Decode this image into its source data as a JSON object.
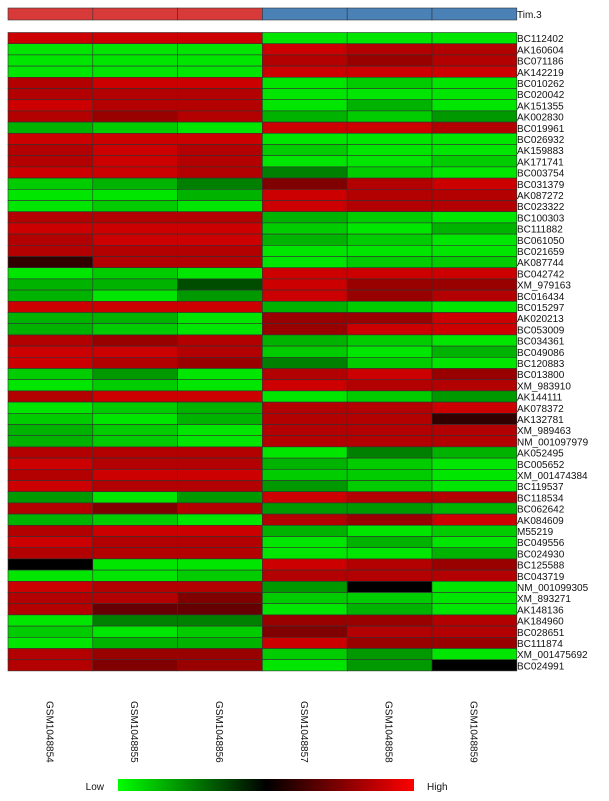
{
  "chart_data": {
    "type": "heatmap",
    "group_bar": {
      "label": "Tim.3",
      "groups": [
        {
          "color": "#d83a3a",
          "samples": 3
        },
        {
          "color": "#4a82b8",
          "samples": 3
        }
      ]
    },
    "samples": [
      "GSM1048854",
      "GSM1048855",
      "GSM1048856",
      "GSM1048857",
      "GSM1048858",
      "GSM1048859"
    ],
    "genes": [
      "BC112402",
      "AK160604",
      "BC071186",
      "AK142219",
      "BC010262",
      "BC020042",
      "AK151355",
      "AK002830",
      "BC019961",
      "BC026932",
      "AK159883",
      "AK171741",
      "BC003754",
      "BC031379",
      "AK087272",
      "BC023322",
      "BC100303",
      "BC111882",
      "BC061050",
      "BC021659",
      "AK087744",
      "BC042742",
      "XM_979163",
      "BC016434",
      "BC015297",
      "AK020213",
      "BC053009",
      "BC034361",
      "BC049086",
      "BC120883",
      "BC013800",
      "XM_983910",
      "AK144111",
      "AK078372",
      "AK132781",
      "XM_989463",
      "NM_001097979",
      "AK052495",
      "BC005652",
      "XM_001474384",
      "BC119537",
      "BC118534",
      "BC062642",
      "AK084609",
      "M55219",
      "BC049556",
      "BC024930",
      "BC125588",
      "BC043719",
      "NM_001099305",
      "XM_893271",
      "AK148136",
      "AK184960",
      "BC028651",
      "BC111874",
      "XM_001475692",
      "BC024991"
    ],
    "values": [
      [
        0.9,
        0.9,
        0.9,
        0.05,
        0.05,
        0.05
      ],
      [
        0.05,
        0.05,
        0.05,
        0.9,
        0.85,
        0.85
      ],
      [
        0.05,
        0.05,
        0.05,
        0.85,
        0.8,
        0.85
      ],
      [
        0.05,
        0.05,
        0.05,
        0.9,
        0.9,
        0.9
      ],
      [
        0.85,
        0.9,
        0.9,
        0.05,
        0.1,
        0.05
      ],
      [
        0.85,
        0.85,
        0.85,
        0.05,
        0.05,
        0.05
      ],
      [
        0.9,
        0.85,
        0.85,
        0.05,
        0.15,
        0.05
      ],
      [
        0.85,
        0.8,
        0.85,
        0.15,
        0.1,
        0.2
      ],
      [
        0.15,
        0.1,
        0.05,
        0.9,
        0.9,
        0.85
      ],
      [
        0.9,
        0.9,
        0.9,
        0.05,
        0.05,
        0.05
      ],
      [
        0.85,
        0.9,
        0.85,
        0.1,
        0.05,
        0.05
      ],
      [
        0.85,
        0.9,
        0.85,
        0.05,
        0.05,
        0.1
      ],
      [
        0.9,
        0.9,
        0.85,
        0.25,
        0.1,
        0.05
      ],
      [
        0.1,
        0.15,
        0.25,
        0.75,
        0.85,
        0.9
      ],
      [
        0.05,
        0.05,
        0.15,
        0.9,
        0.85,
        0.85
      ],
      [
        0.05,
        0.1,
        0.05,
        0.9,
        0.85,
        0.85
      ],
      [
        0.85,
        0.85,
        0.85,
        0.15,
        0.1,
        0.05
      ],
      [
        0.9,
        0.9,
        0.9,
        0.1,
        0.05,
        0.15
      ],
      [
        0.85,
        0.9,
        0.9,
        0.15,
        0.1,
        0.05
      ],
      [
        0.85,
        0.85,
        0.85,
        0.05,
        0.05,
        0.05
      ],
      [
        0.6,
        0.85,
        0.85,
        0.05,
        0.1,
        0.1
      ],
      [
        0.05,
        0.1,
        0.05,
        0.9,
        0.9,
        0.9
      ],
      [
        0.15,
        0.15,
        0.35,
        0.9,
        0.8,
        0.8
      ],
      [
        0.15,
        0.05,
        0.2,
        0.9,
        0.8,
        0.85
      ],
      [
        0.9,
        0.9,
        0.9,
        0.15,
        0.1,
        0.05
      ],
      [
        0.15,
        0.15,
        0.05,
        0.8,
        0.8,
        0.9
      ],
      [
        0.15,
        0.1,
        0.05,
        0.8,
        0.9,
        0.9
      ],
      [
        0.85,
        0.8,
        0.85,
        0.15,
        0.1,
        0.05
      ],
      [
        0.9,
        0.9,
        0.85,
        0.1,
        0.05,
        0.15
      ],
      [
        0.9,
        0.85,
        0.8,
        0.25,
        0.1,
        0.05
      ],
      [
        0.1,
        0.2,
        0.05,
        0.85,
        0.9,
        0.8
      ],
      [
        0.05,
        0.1,
        0.05,
        0.9,
        0.85,
        0.85
      ],
      [
        0.85,
        0.9,
        0.9,
        0.05,
        0.1,
        0.2
      ],
      [
        0.05,
        0.1,
        0.15,
        0.85,
        0.85,
        0.9
      ],
      [
        0.1,
        0.05,
        0.15,
        0.85,
        0.85,
        0.6
      ],
      [
        0.15,
        0.1,
        0.05,
        0.85,
        0.85,
        0.85
      ],
      [
        0.15,
        0.1,
        0.05,
        0.85,
        0.85,
        0.85
      ],
      [
        0.85,
        0.85,
        0.85,
        0.05,
        0.25,
        0.15
      ],
      [
        0.9,
        0.85,
        0.85,
        0.15,
        0.1,
        0.05
      ],
      [
        0.85,
        0.9,
        0.9,
        0.1,
        0.1,
        0.05
      ],
      [
        0.9,
        0.85,
        0.85,
        0.2,
        0.1,
        0.05
      ],
      [
        0.2,
        0.05,
        0.2,
        0.9,
        0.85,
        0.85
      ],
      [
        0.85,
        0.75,
        0.85,
        0.2,
        0.2,
        0.15
      ],
      [
        0.15,
        0.1,
        0.05,
        0.85,
        0.8,
        0.9
      ],
      [
        0.85,
        0.9,
        0.9,
        0.15,
        0.05,
        0.1
      ],
      [
        0.9,
        0.85,
        0.85,
        0.05,
        0.15,
        0.05
      ],
      [
        0.85,
        0.85,
        0.85,
        0.05,
        0.05,
        0.15
      ],
      [
        0.5,
        0.05,
        0.05,
        0.9,
        0.85,
        0.8
      ],
      [
        0.05,
        0.05,
        0.1,
        0.85,
        0.85,
        0.85
      ],
      [
        0.9,
        0.85,
        0.85,
        0.2,
        0.5,
        0.05
      ],
      [
        0.85,
        0.85,
        0.75,
        0.1,
        0.1,
        0.05
      ],
      [
        0.85,
        0.7,
        0.7,
        0.05,
        0.15,
        0.05
      ],
      [
        0.05,
        0.25,
        0.25,
        0.8,
        0.8,
        0.85
      ],
      [
        0.1,
        0.05,
        0.1,
        0.75,
        0.85,
        0.85
      ],
      [
        0.05,
        0.15,
        0.15,
        0.9,
        0.8,
        0.8
      ],
      [
        0.85,
        0.8,
        0.8,
        0.1,
        0.2,
        0.05
      ],
      [
        0.85,
        0.75,
        0.8,
        0.05,
        0.2,
        0.5
      ]
    ],
    "colorscale": {
      "low_color": "#00ff00",
      "mid_color": "#000000",
      "high_color": "#ff0000"
    },
    "legend": {
      "low_label": "Low",
      "high_label": "High"
    },
    "value_range": [
      0,
      1
    ]
  }
}
